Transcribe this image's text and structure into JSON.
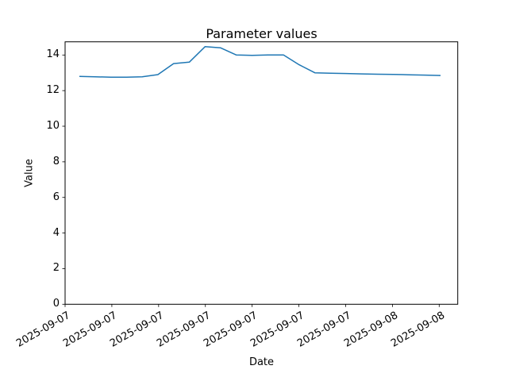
{
  "chart_data": {
    "type": "line",
    "title": "Parameter values",
    "xlabel": "Date",
    "ylabel": "Value",
    "ylim": [
      0,
      14.74
    ],
    "y_ticks": [
      0,
      2,
      4,
      6,
      8,
      10,
      12,
      14
    ],
    "x_tick_labels": [
      "2025-09-07",
      "2025-09-07",
      "2025-09-07",
      "2025-09-07",
      "2025-09-07",
      "2025-09-07",
      "2025-09-07",
      "2025-09-08",
      "2025-09-08"
    ],
    "grid": false,
    "legend": "none",
    "line_color": "#1f77b4",
    "axis_color": "#000000",
    "series": [
      {
        "name": "parameter-values",
        "x_frac": [
          0.0364,
          0.0764,
          0.1164,
          0.1564,
          0.1963,
          0.2363,
          0.2763,
          0.3163,
          0.3563,
          0.3963,
          0.4363,
          0.4762,
          0.5162,
          0.5562,
          0.5962,
          0.6362,
          0.6762,
          0.7162,
          0.7561,
          0.7961,
          0.8361,
          0.8761,
          0.9161,
          0.9561
        ],
        "values": [
          12.8,
          12.78,
          12.75,
          12.75,
          12.78,
          12.9,
          13.52,
          13.6,
          14.47,
          14.4,
          14.0,
          13.98,
          14.0,
          14.0,
          13.45,
          13.0,
          12.98,
          12.96,
          12.94,
          12.92,
          12.91,
          12.89,
          12.87,
          12.85
        ]
      }
    ]
  }
}
